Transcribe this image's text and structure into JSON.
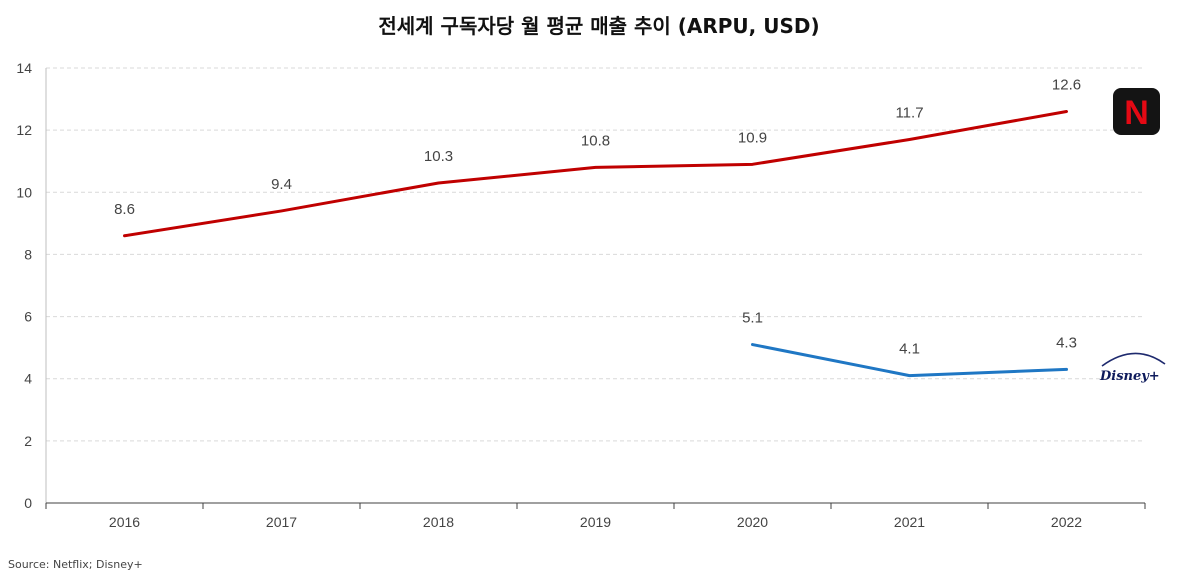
{
  "chart_data": {
    "type": "line",
    "title": "전세계 구독자당 월 평균 매출 추이 (ARPU, USD)",
    "categories": [
      "2016",
      "2017",
      "2018",
      "2019",
      "2020",
      "2021",
      "2022"
    ],
    "series": [
      {
        "name": "Netflix",
        "color": "#c00000",
        "values": [
          8.6,
          9.4,
          10.3,
          10.8,
          10.9,
          11.7,
          12.6
        ],
        "labels": [
          "8.6",
          "9.4",
          "10.3",
          "10.8",
          "10.9",
          "11.7",
          "12.6"
        ]
      },
      {
        "name": "Disney+",
        "color": "#1f77c4",
        "values": [
          null,
          null,
          null,
          null,
          5.1,
          4.1,
          4.3
        ],
        "labels": [
          "",
          "",
          "",
          "",
          "5.1",
          "4.1",
          "4.3"
        ]
      }
    ],
    "ylim": [
      0,
      14
    ],
    "yticks": [
      "0",
      "2",
      "4",
      "6",
      "8",
      "10",
      "12",
      "14"
    ],
    "grid": true,
    "xlabel": "",
    "ylabel": ""
  },
  "source": "Source: Netflix; Disney+",
  "logos": {
    "netflix": "N",
    "disney": "Disney+"
  }
}
